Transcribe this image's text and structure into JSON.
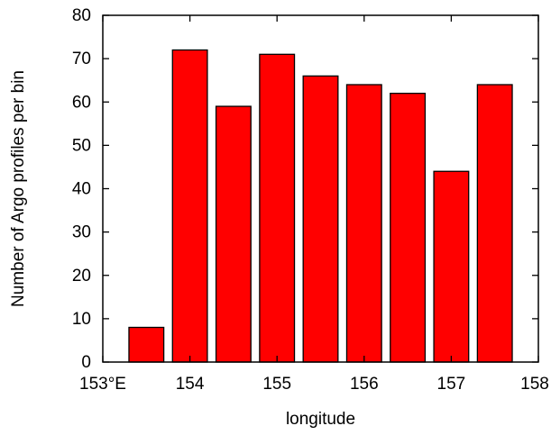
{
  "chart_data": {
    "type": "bar",
    "title": "",
    "xlabel": "longitude",
    "ylabel": "Number of Argo profiles per bin",
    "xlim": [
      153,
      158
    ],
    "ylim": [
      0,
      80
    ],
    "x_ticks": [
      {
        "value": 153,
        "label": "153°E"
      },
      {
        "value": 154,
        "label": "154"
      },
      {
        "value": 155,
        "label": "155"
      },
      {
        "value": 156,
        "label": "156"
      },
      {
        "value": 157,
        "label": "157"
      },
      {
        "value": 158,
        "label": "158"
      }
    ],
    "y_ticks": [
      {
        "value": 0,
        "label": "0"
      },
      {
        "value": 10,
        "label": "10"
      },
      {
        "value": 20,
        "label": "20"
      },
      {
        "value": 30,
        "label": "30"
      },
      {
        "value": 40,
        "label": "40"
      },
      {
        "value": 50,
        "label": "50"
      },
      {
        "value": 60,
        "label": "60"
      },
      {
        "value": 70,
        "label": "70"
      },
      {
        "value": 80,
        "label": "80"
      }
    ],
    "bars": [
      {
        "x": 153.5,
        "value": 8
      },
      {
        "x": 154.0,
        "value": 72
      },
      {
        "x": 154.5,
        "value": 59
      },
      {
        "x": 155.0,
        "value": 71
      },
      {
        "x": 155.5,
        "value": 66
      },
      {
        "x": 156.0,
        "value": 64
      },
      {
        "x": 156.5,
        "value": 62
      },
      {
        "x": 157.0,
        "value": 44
      },
      {
        "x": 157.5,
        "value": 64
      }
    ],
    "bin_width": 0.5,
    "bar_color": "#ff0000",
    "bar_edge_color": "#000000",
    "grid": false,
    "legend": "none"
  }
}
